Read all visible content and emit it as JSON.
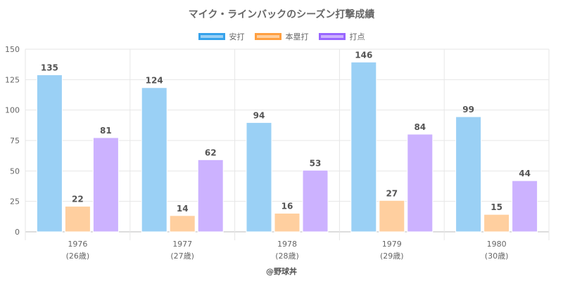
{
  "chart_data": {
    "type": "bar",
    "title": "マイク・ラインバックのシーズン打撃成績",
    "categories": [
      "1976",
      "1977",
      "1978",
      "1979",
      "1980"
    ],
    "category_sublabels": [
      "(26歳)",
      "(27歳)",
      "(28歳)",
      "(29歳)",
      "(30歳)"
    ],
    "series": [
      {
        "name": "安打",
        "values": [
          135,
          124,
          94,
          146,
          99
        ],
        "fill": "#9ad0f5",
        "border": "#36a2eb"
      },
      {
        "name": "本塁打",
        "values": [
          22,
          14,
          16,
          27,
          15
        ],
        "fill": "#ffcf9f",
        "border": "#ff9f40"
      },
      {
        "name": "打点",
        "values": [
          81,
          62,
          53,
          84,
          44
        ],
        "fill": "#ccb2ff",
        "border": "#9966ff"
      }
    ],
    "ylim": [
      0,
      150
    ],
    "yticks": [
      "0",
      "25",
      "50",
      "75",
      "100",
      "125",
      "150"
    ],
    "grid": true,
    "legend_position": "top",
    "xlabel": "",
    "ylabel": ""
  },
  "credit": "@野球丼"
}
